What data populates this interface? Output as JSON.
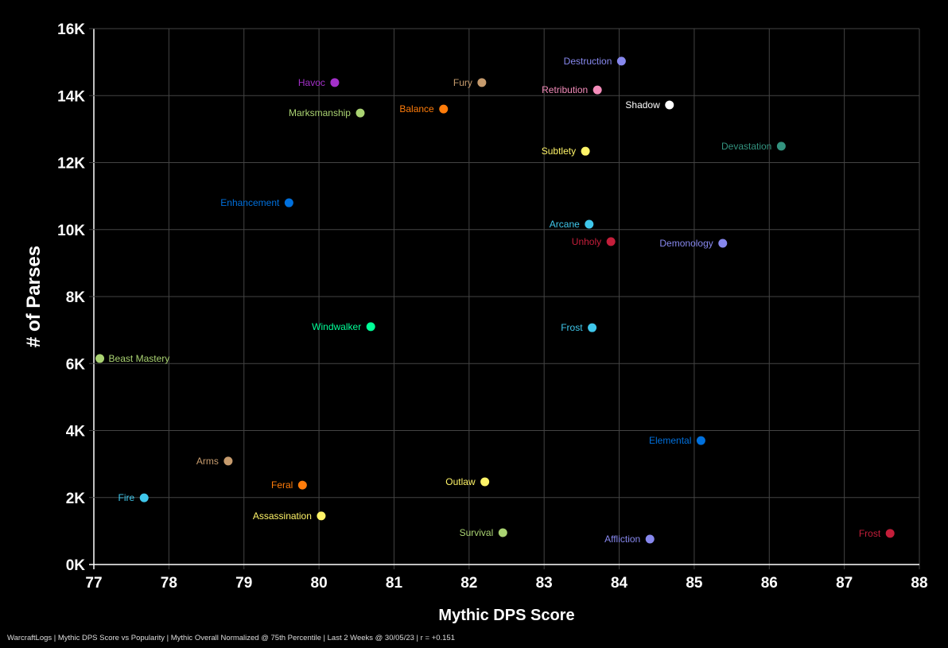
{
  "chart_data": {
    "type": "scatter",
    "title": "",
    "xlabel": "Mythic DPS Score",
    "ylabel": "# of Parses",
    "xlim": [
      77,
      88
    ],
    "ylim": [
      0,
      16000
    ],
    "x_ticks": [
      "77",
      "78",
      "79",
      "80",
      "81",
      "82",
      "83",
      "84",
      "85",
      "86",
      "87",
      "88"
    ],
    "y_ticks": [
      "0K",
      "2K",
      "4K",
      "6K",
      "8K",
      "10K",
      "12K",
      "14K",
      "16K"
    ],
    "grid": true,
    "points": [
      {
        "label": "Havoc",
        "x": 80.21,
        "y": 14390,
        "color": "#a330c9"
      },
      {
        "label": "Fury",
        "x": 82.17,
        "y": 14390,
        "color": "#c69b6d"
      },
      {
        "label": "Destruction",
        "x": 84.03,
        "y": 15030,
        "color": "#8788ee"
      },
      {
        "label": "Retribution",
        "x": 83.71,
        "y": 14170,
        "color": "#f48cba"
      },
      {
        "label": "Shadow",
        "x": 84.67,
        "y": 13720,
        "color": "#ffffff"
      },
      {
        "label": "Marksmanship",
        "x": 80.55,
        "y": 13480,
        "color": "#aad372"
      },
      {
        "label": "Balance",
        "x": 81.66,
        "y": 13600,
        "color": "#ff7c0a"
      },
      {
        "label": "Subtlety",
        "x": 83.55,
        "y": 12340,
        "color": "#fff468"
      },
      {
        "label": "Devastation",
        "x": 86.16,
        "y": 12490,
        "color": "#33937f"
      },
      {
        "label": "Enhancement",
        "x": 79.6,
        "y": 10800,
        "color": "#0070dd"
      },
      {
        "label": "Arcane",
        "x": 83.6,
        "y": 10160,
        "color": "#3fc7eb"
      },
      {
        "label": "Unholy",
        "x": 83.89,
        "y": 9640,
        "color": "#c41e3a"
      },
      {
        "label": "Demonology",
        "x": 85.38,
        "y": 9590,
        "color": "#8788ee"
      },
      {
        "label": "Windwalker",
        "x": 80.69,
        "y": 7100,
        "color": "#00ff98"
      },
      {
        "label": "Frost",
        "x": 83.64,
        "y": 7070,
        "color": "#3fc7eb"
      },
      {
        "label": "Beast Mastery",
        "x": 77.08,
        "y": 6150,
        "color": "#aad372"
      },
      {
        "label": "Elemental",
        "x": 85.09,
        "y": 3700,
        "color": "#0070dd"
      },
      {
        "label": "Arms",
        "x": 78.79,
        "y": 3090,
        "color": "#c69b6d"
      },
      {
        "label": "Feral",
        "x": 79.78,
        "y": 2370,
        "color": "#ff7c0a"
      },
      {
        "label": "Outlaw",
        "x": 82.21,
        "y": 2470,
        "color": "#fff468"
      },
      {
        "label": "Fire",
        "x": 77.67,
        "y": 1990,
        "color": "#3fc7eb"
      },
      {
        "label": "Assassination",
        "x": 80.03,
        "y": 1450,
        "color": "#fff468"
      },
      {
        "label": "Survival",
        "x": 82.45,
        "y": 950,
        "color": "#aad372"
      },
      {
        "label": "Affliction",
        "x": 84.41,
        "y": 760,
        "color": "#8788ee"
      },
      {
        "label": "Frost",
        "x": 87.61,
        "y": 930,
        "color": "#c41e3a"
      }
    ]
  },
  "footer": "WarcraftLogs | Mythic DPS Score vs Popularity | Mythic Overall Normalized @ 75th Percentile | Last 2 Weeks @ 30/05/23 | r = +0.151"
}
